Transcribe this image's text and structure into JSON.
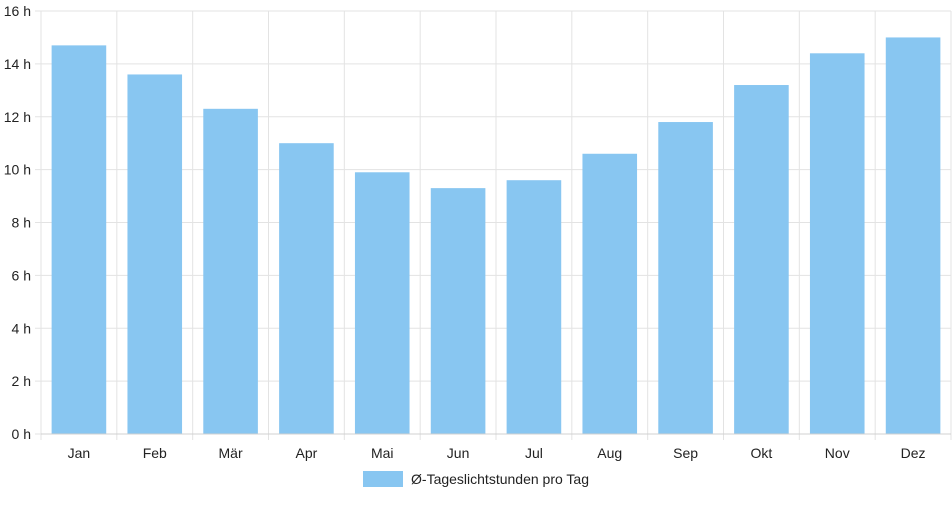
{
  "chart_data": {
    "type": "bar",
    "categories": [
      "Jan",
      "Feb",
      "Mär",
      "Apr",
      "Mai",
      "Jun",
      "Jul",
      "Aug",
      "Sep",
      "Okt",
      "Nov",
      "Dez"
    ],
    "series": [
      {
        "name": "Ø-Tageslichtstunden pro Tag",
        "values": [
          14.7,
          13.6,
          12.3,
          11.0,
          9.9,
          9.3,
          9.6,
          10.6,
          11.8,
          13.2,
          14.4,
          15.0
        ],
        "color": "#88c6f1"
      }
    ],
    "yticks": [
      "0 h",
      "2 h",
      "4 h",
      "6 h",
      "8 h",
      "10 h",
      "12 h",
      "14 h",
      "16 h"
    ],
    "ylim": [
      0,
      16
    ],
    "grid": true,
    "legend_position": "bottom"
  }
}
